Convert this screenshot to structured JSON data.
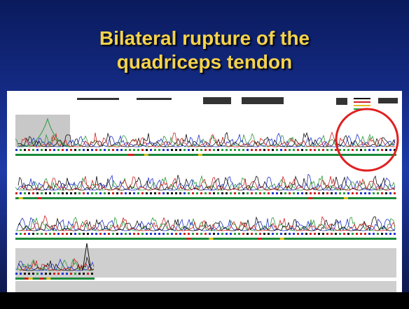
{
  "slide": {
    "title_lines": [
      "Bilateral rupture of the",
      "quadriceps tendon"
    ]
  }
}
